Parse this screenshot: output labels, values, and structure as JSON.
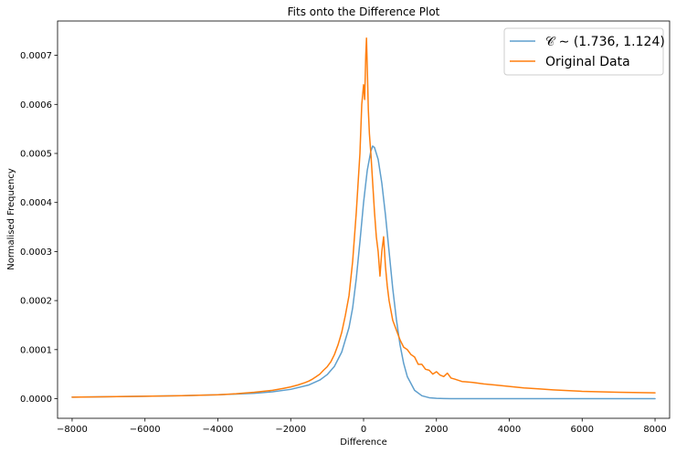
{
  "chart_data": {
    "type": "line",
    "title": "Fits onto the Difference Plot",
    "xlabel": "Difference",
    "ylabel": "Normalised Frequency",
    "xlim": [
      -8400,
      8400
    ],
    "ylim": [
      -4e-05,
      0.00077
    ],
    "xticks": [
      -8000,
      -6000,
      -4000,
      -2000,
      0,
      2000,
      4000,
      6000,
      8000
    ],
    "xtick_labels": [
      "−8000",
      "−6000",
      "−4000",
      "−2000",
      "0",
      "2000",
      "4000",
      "6000",
      "8000"
    ],
    "yticks": [
      0.0,
      0.0001,
      0.0002,
      0.0003,
      0.0004,
      0.0005,
      0.0006,
      0.0007
    ],
    "ytick_labels": [
      "0.0000",
      "0.0001",
      "0.0002",
      "0.0003",
      "0.0004",
      "0.0005",
      "0.0006",
      "0.0007"
    ],
    "grid": false,
    "legend_position": "top-right",
    "series": [
      {
        "name": "𝒞 ∼ (1.736, 1.124)",
        "color": "#5f9fcd",
        "x": [
          -8000,
          -7000,
          -6000,
          -5000,
          -4000,
          -3000,
          -2500,
          -2000,
          -1500,
          -1200,
          -1000,
          -800,
          -600,
          -400,
          -300,
          -200,
          -100,
          0,
          100,
          200,
          250,
          300,
          400,
          500,
          600,
          700,
          800,
          900,
          1000,
          1100,
          1200,
          1400,
          1600,
          1800,
          2000,
          2200,
          2400,
          3000,
          4000,
          6000,
          8000
        ],
        "y": [
          3e-06,
          4e-06,
          5e-06,
          6e-06,
          8e-06,
          1.1e-05,
          1.4e-05,
          1.9e-05,
          2.8e-05,
          3.8e-05,
          4.9e-05,
          6.6e-05,
          9.5e-05,
          0.000145,
          0.000185,
          0.000245,
          0.00032,
          0.0004,
          0.000465,
          0.000505,
          0.000515,
          0.000512,
          0.000488,
          0.00044,
          0.000375,
          0.0003,
          0.000225,
          0.000162,
          0.00011,
          7.2e-05,
          4.5e-05,
          1.7e-05,
          6e-06,
          2e-06,
          8e-07,
          3e-07,
          1e-07,
          0.0,
          0.0,
          0.0,
          0.0
        ]
      },
      {
        "name": "Original Data",
        "color": "#ff7f0e",
        "x": [
          -8000,
          -7000,
          -6000,
          -5000,
          -4500,
          -4000,
          -3500,
          -3000,
          -2500,
          -2200,
          -2000,
          -1800,
          -1600,
          -1500,
          -1400,
          -1300,
          -1200,
          -1100,
          -1000,
          -900,
          -800,
          -700,
          -600,
          -500,
          -400,
          -300,
          -200,
          -100,
          -50,
          0,
          30,
          60,
          80,
          100,
          130,
          160,
          200,
          250,
          300,
          350,
          400,
          450,
          500,
          550,
          600,
          650,
          700,
          750,
          800,
          900,
          1000,
          1100,
          1200,
          1300,
          1400,
          1500,
          1600,
          1700,
          1800,
          1900,
          2000,
          2100,
          2200,
          2300,
          2400,
          2500,
          2700,
          3000,
          3300,
          3600,
          4000,
          4400,
          4800,
          5200,
          6000,
          7000,
          8000
        ],
        "y": [
          3e-06,
          4e-06,
          5e-06,
          6e-06,
          7e-06,
          8e-06,
          1e-05,
          1.3e-05,
          1.7e-05,
          2.1e-05,
          2.4e-05,
          2.8e-05,
          3.3e-05,
          3.6e-05,
          4e-05,
          4.5e-05,
          5e-05,
          5.8e-05,
          6.5e-05,
          7.5e-05,
          9e-05,
          0.00011,
          0.000135,
          0.00017,
          0.00021,
          0.00028,
          0.00038,
          0.0005,
          0.0006,
          0.00064,
          0.00061,
          0.0007,
          0.000735,
          0.00068,
          0.00059,
          0.00054,
          0.0005,
          0.00044,
          0.00038,
          0.00033,
          0.0003,
          0.00025,
          0.0003,
          0.00033,
          0.00027,
          0.00023,
          0.0002,
          0.00018,
          0.00016,
          0.00014,
          0.00012,
          0.000105,
          0.0001,
          9e-05,
          8.5e-05,
          7e-05,
          7e-05,
          6e-05,
          5.8e-05,
          5e-05,
          5.5e-05,
          4.8e-05,
          4.5e-05,
          5.2e-05,
          4.2e-05,
          4e-05,
          3.5e-05,
          3.3e-05,
          3e-05,
          2.8e-05,
          2.5e-05,
          2.2e-05,
          2e-05,
          1.8e-05,
          1.5e-05,
          1.3e-05,
          1.2e-05
        ]
      }
    ]
  }
}
